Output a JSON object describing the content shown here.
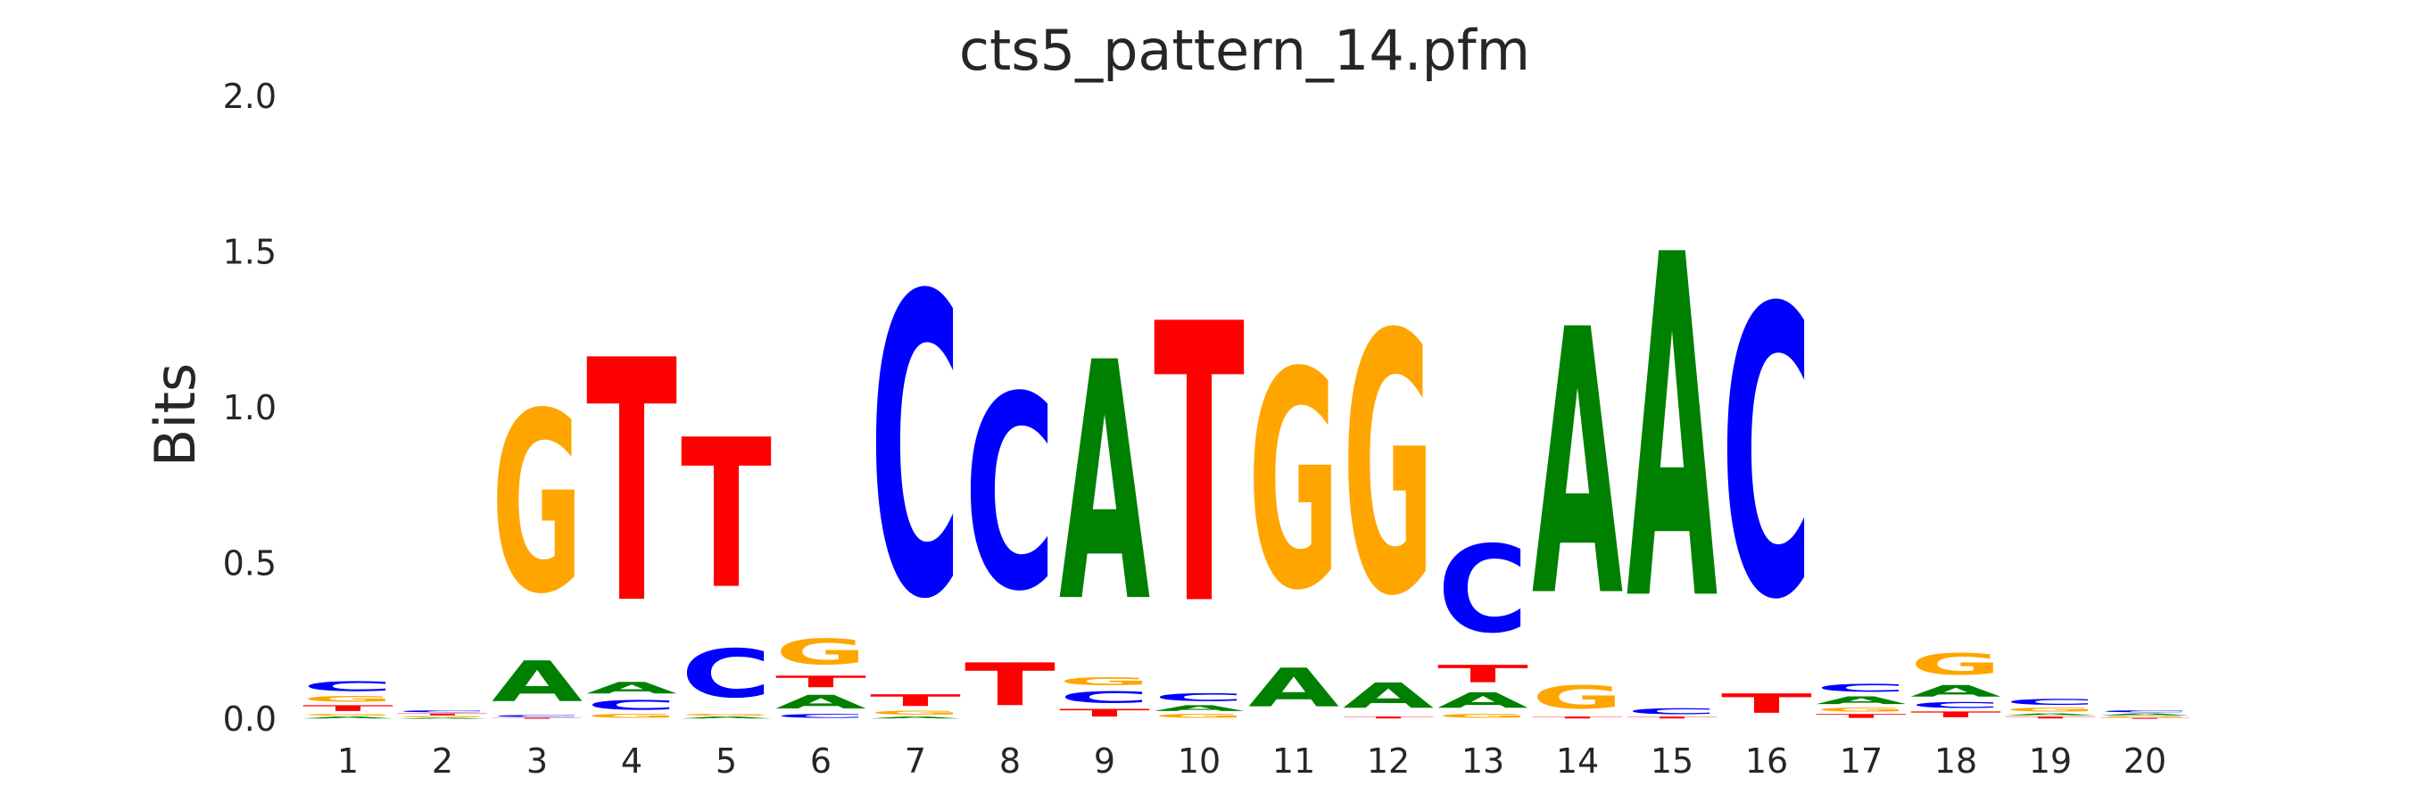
{
  "chart_data": {
    "type": "sequence-logo",
    "title": "cts5_pattern_14.pfm",
    "ylabel": "Bits",
    "xlabel": "",
    "ylim": [
      0,
      2.0
    ],
    "y_ticks": [
      "0.0",
      "0.5",
      "1.0",
      "1.5",
      "2.0"
    ],
    "y_tick_values": [
      0,
      0.5,
      1.0,
      1.5,
      2.0
    ],
    "grid": false,
    "colors": {
      "A": "#008000",
      "C": "#0000ff",
      "G": "#ffa500",
      "T": "#ff0000"
    },
    "positions": [
      {
        "label": "1",
        "stack": [
          [
            "A",
            0.01
          ],
          [
            "G",
            0.01
          ],
          [
            "T",
            0.03
          ],
          [
            "G",
            0.03
          ],
          [
            "C",
            0.05
          ]
        ]
      },
      {
        "label": "2",
        "stack": [
          [
            "A",
            0.005
          ],
          [
            "G",
            0.005
          ],
          [
            "T",
            0.01
          ],
          [
            "C",
            0.01
          ]
        ]
      },
      {
        "label": "3",
        "stack": [
          [
            "T",
            0.005
          ],
          [
            "C",
            0.01
          ],
          [
            "A",
            0.21
          ],
          [
            "G",
            0.93
          ]
        ]
      },
      {
        "label": "4",
        "stack": [
          [
            "G",
            0.02
          ],
          [
            "C",
            0.05
          ],
          [
            "A",
            0.06
          ],
          [
            "T",
            1.25
          ]
        ]
      },
      {
        "label": "5",
        "stack": [
          [
            "A",
            0.01
          ],
          [
            "G",
            0.01
          ],
          [
            "C",
            0.25
          ],
          [
            "T",
            0.77
          ]
        ]
      },
      {
        "label": "6",
        "stack": [
          [
            "C",
            0.02
          ],
          [
            "A",
            0.07
          ],
          [
            "T",
            0.06
          ],
          [
            "G",
            0.13
          ]
        ]
      },
      {
        "label": "7",
        "stack": [
          [
            "A",
            0.01
          ],
          [
            "G",
            0.02
          ],
          [
            "T",
            0.06
          ],
          [
            "C",
            1.55
          ]
        ]
      },
      {
        "label": "8",
        "stack": [
          [
            "T",
            0.22
          ],
          [
            "C",
            1.0
          ]
        ]
      },
      {
        "label": "9",
        "stack": [
          [
            "T",
            0.04
          ],
          [
            "C",
            0.06
          ],
          [
            "G",
            0.04
          ],
          [
            "A",
            1.23
          ]
        ]
      },
      {
        "label": "10",
        "stack": [
          [
            "G",
            0.02
          ],
          [
            "A",
            0.03
          ],
          [
            "C",
            0.04
          ],
          [
            "T",
            1.44
          ]
        ]
      },
      {
        "label": "11",
        "stack": [
          [
            "A",
            0.2
          ],
          [
            "G",
            1.12
          ]
        ]
      },
      {
        "label": "12",
        "stack": [
          [
            "T",
            0.01
          ],
          [
            "A",
            0.13
          ],
          [
            "G",
            1.34
          ]
        ]
      },
      {
        "label": "13",
        "stack": [
          [
            "G",
            0.02
          ],
          [
            "A",
            0.08
          ],
          [
            "T",
            0.09
          ],
          [
            "C",
            0.45
          ]
        ]
      },
      {
        "label": "14",
        "stack": [
          [
            "T",
            0.01
          ],
          [
            "G",
            0.12
          ],
          [
            "A",
            1.37
          ]
        ]
      },
      {
        "label": "15",
        "stack": [
          [
            "T",
            0.01
          ],
          [
            "C",
            0.03
          ],
          [
            "A",
            1.77
          ]
        ]
      },
      {
        "label": "16",
        "stack": [
          [
            "T",
            0.1
          ],
          [
            "C",
            1.49
          ]
        ]
      },
      {
        "label": "17",
        "stack": [
          [
            "T",
            0.02
          ],
          [
            "G",
            0.02
          ],
          [
            "A",
            0.04
          ],
          [
            "C",
            0.04
          ]
        ]
      },
      {
        "label": "18",
        "stack": [
          [
            "T",
            0.03
          ],
          [
            "C",
            0.03
          ],
          [
            "A",
            0.06
          ],
          [
            "G",
            0.11
          ]
        ]
      },
      {
        "label": "19",
        "stack": [
          [
            "T",
            0.01
          ],
          [
            "A",
            0.01
          ],
          [
            "G",
            0.02
          ],
          [
            "C",
            0.03
          ]
        ]
      },
      {
        "label": "20",
        "stack": [
          [
            "T",
            0.005
          ],
          [
            "G",
            0.005
          ],
          [
            "A",
            0.01
          ],
          [
            "C",
            0.01
          ]
        ]
      }
    ]
  }
}
